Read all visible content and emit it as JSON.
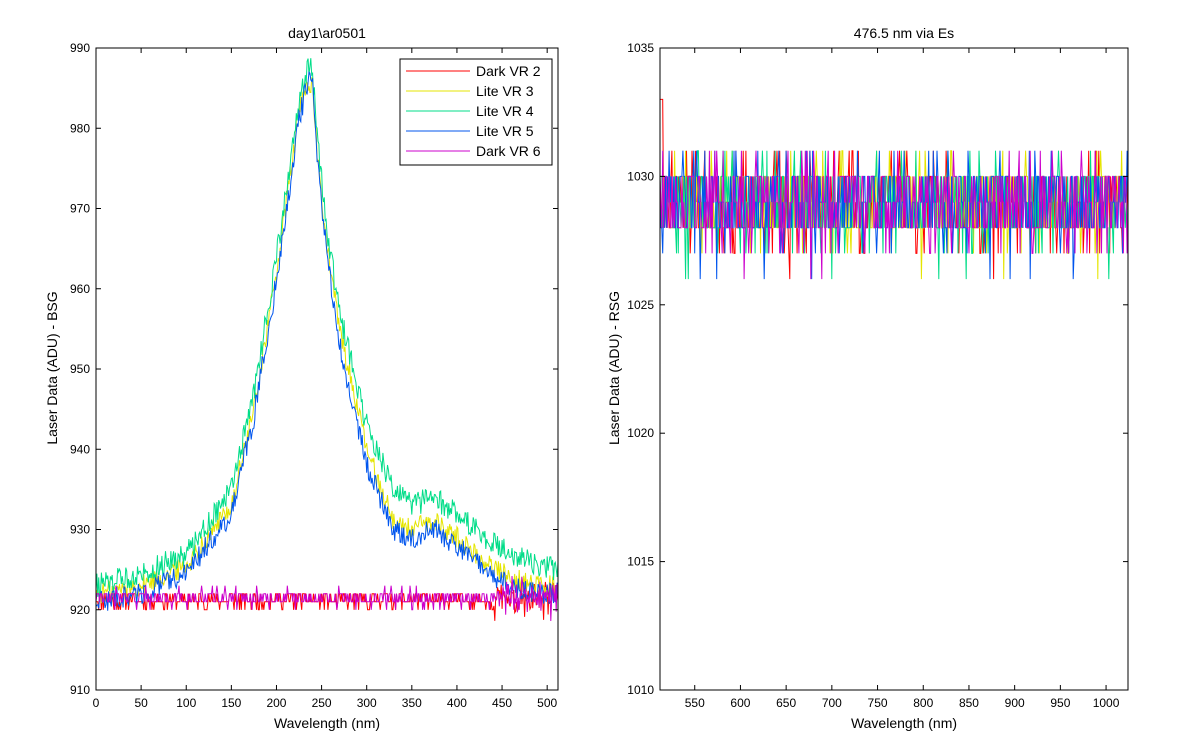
{
  "chart_data": [
    {
      "type": "line",
      "title": "day1\\ar0501",
      "xlabel": "Wavelength (nm)",
      "ylabel": "Laser Data (ADU) - BSG",
      "xlim": [
        0,
        512
      ],
      "ylim": [
        910,
        990
      ],
      "xticks": [
        0,
        50,
        100,
        150,
        200,
        250,
        300,
        350,
        400,
        450,
        500
      ],
      "yticks": [
        910,
        920,
        930,
        940,
        950,
        960,
        970,
        980,
        990
      ],
      "grid": false,
      "legend": "top-right",
      "series": [
        {
          "name": "Dark VR 2",
          "color": "#ff0000",
          "baseline": 921.2,
          "noise": 1.0,
          "x": [
            0,
            512
          ],
          "y": [
            921,
            921
          ]
        },
        {
          "name": "Lite VR 3",
          "color": "#e5e500",
          "noise": 1.4,
          "x": [
            0,
            50,
            100,
            150,
            175,
            200,
            215,
            225,
            235,
            240,
            245,
            255,
            270,
            300,
            330,
            350,
            375,
            400,
            430,
            460,
            490,
            512
          ],
          "y": [
            922,
            923,
            925.5,
            933,
            945,
            962,
            974,
            982,
            986,
            985,
            977,
            966,
            955,
            940,
            931,
            930,
            931,
            929,
            926,
            924,
            923,
            923
          ]
        },
        {
          "name": "Lite VR 4",
          "color": "#00dd88",
          "noise": 1.5,
          "x": [
            0,
            50,
            100,
            150,
            175,
            200,
            215,
            225,
            235,
            240,
            245,
            255,
            270,
            300,
            330,
            350,
            375,
            400,
            430,
            460,
            490,
            512
          ],
          "y": [
            923,
            924.5,
            927,
            935,
            947,
            964,
            975,
            983,
            988,
            987,
            979,
            968,
            957,
            943,
            935,
            933,
            934,
            932,
            929,
            927,
            925.5,
            925
          ]
        },
        {
          "name": "Lite VR 5",
          "color": "#0055ee",
          "noise": 1.4,
          "x": [
            0,
            50,
            100,
            150,
            175,
            200,
            215,
            225,
            235,
            240,
            245,
            255,
            270,
            300,
            330,
            350,
            375,
            400,
            430,
            460,
            490,
            512
          ],
          "y": [
            921,
            922,
            924.5,
            932,
            944,
            961,
            973,
            981,
            986,
            985,
            976,
            965,
            953,
            938,
            930,
            929,
            930,
            928,
            925,
            923,
            922,
            922
          ]
        },
        {
          "name": "Dark VR 6",
          "color": "#cc00cc",
          "baseline": 921.5,
          "noise": 1.1,
          "x": [
            0,
            512
          ],
          "y": [
            921.5,
            921.5
          ]
        }
      ]
    },
    {
      "type": "line",
      "title": "476.5 nm via Es",
      "xlabel": "Wavelength (nm)",
      "ylabel": "Laser Data (ADU) - RSG",
      "xlim": [
        512,
        1024
      ],
      "ylim": [
        1010,
        1035
      ],
      "xticks": [
        550,
        600,
        650,
        700,
        750,
        800,
        850,
        900,
        950,
        1000
      ],
      "yticks": [
        1010,
        1015,
        1020,
        1025,
        1030,
        1035
      ],
      "grid": false,
      "series": [
        {
          "color": "#ff0000",
          "x": [
            512,
            1024
          ],
          "y": [
            1029,
            1029
          ]
        },
        {
          "color": "#e5e500",
          "x": [
            512,
            1024
          ],
          "y": [
            1029,
            1029
          ]
        },
        {
          "color": "#00dd88",
          "x": [
            512,
            1024
          ],
          "y": [
            1029,
            1029
          ]
        },
        {
          "color": "#0055ee",
          "x": [
            512,
            1024
          ],
          "y": [
            1029,
            1029
          ]
        },
        {
          "color": "#cc00cc",
          "x": [
            512,
            1024
          ],
          "y": [
            1029,
            1029
          ]
        }
      ]
    }
  ]
}
